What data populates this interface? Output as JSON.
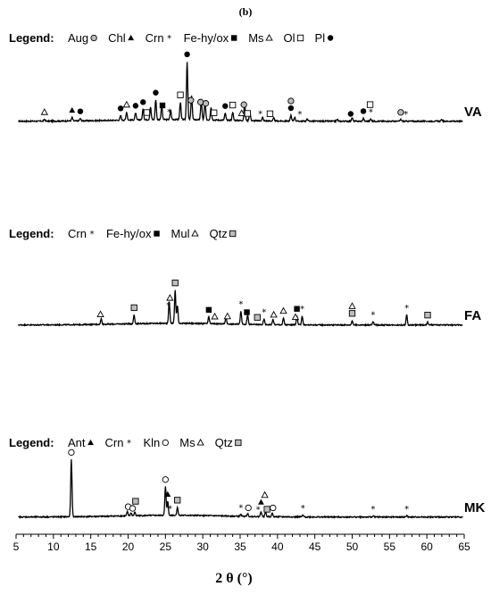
{
  "chart_data": {
    "type": "line",
    "panel_label": "(b)",
    "xlabel": "2 θ (°)",
    "xlim": [
      5,
      65
    ],
    "x_ticks": [
      "5",
      "10",
      "15",
      "20",
      "25",
      "30",
      "35",
      "40",
      "45",
      "50",
      "55",
      "60",
      "65"
    ],
    "legend_key": "Legend:",
    "series": [
      {
        "name": "VA",
        "legend": [
          {
            "label": "Aug",
            "marker": "circle-gray"
          },
          {
            "label": "Chl",
            "marker": "triangle-filled"
          },
          {
            "label": "Crn",
            "marker": "star"
          },
          {
            "label": "Fe-hy/ox",
            "marker": "square-filled"
          },
          {
            "label": "Ms",
            "marker": "triangle-open"
          },
          {
            "label": "Ol",
            "marker": "square-open"
          },
          {
            "label": "Pl",
            "marker": "circle-filled"
          }
        ],
        "peaks": [
          {
            "x": 8.8,
            "h": 0.03
          },
          {
            "x": 12.5,
            "h": 0.06
          },
          {
            "x": 13.6,
            "h": 0.04
          },
          {
            "x": 19.0,
            "h": 0.08
          },
          {
            "x": 19.8,
            "h": 0.14
          },
          {
            "x": 21.0,
            "h": 0.12
          },
          {
            "x": 22.0,
            "h": 0.18
          },
          {
            "x": 23.0,
            "h": 0.22
          },
          {
            "x": 23.7,
            "h": 0.34
          },
          {
            "x": 24.5,
            "h": 0.24
          },
          {
            "x": 25.7,
            "h": 0.16
          },
          {
            "x": 27.0,
            "h": 0.3
          },
          {
            "x": 27.9,
            "h": 1.0
          },
          {
            "x": 28.5,
            "h": 0.42
          },
          {
            "x": 29.8,
            "h": 0.36
          },
          {
            "x": 30.3,
            "h": 0.32
          },
          {
            "x": 31.1,
            "h": 0.22
          },
          {
            "x": 33.0,
            "h": 0.12
          },
          {
            "x": 34.0,
            "h": 0.14
          },
          {
            "x": 35.6,
            "h": 0.3
          },
          {
            "x": 36.3,
            "h": 0.16
          },
          {
            "x": 38.0,
            "h": 0.06
          },
          {
            "x": 39.5,
            "h": 0.05
          },
          {
            "x": 41.8,
            "h": 0.1
          },
          {
            "x": 42.3,
            "h": 0.07
          },
          {
            "x": 44.0,
            "h": 0.04
          },
          {
            "x": 48.0,
            "h": 0.03
          },
          {
            "x": 50.0,
            "h": 0.06
          },
          {
            "x": 51.5,
            "h": 0.05
          },
          {
            "x": 52.5,
            "h": 0.04
          },
          {
            "x": 56.5,
            "h": 0.03
          },
          {
            "x": 62.0,
            "h": 0.03
          }
        ],
        "markers": [
          {
            "x": 8.8,
            "m": "triangle-open"
          },
          {
            "x": 12.5,
            "m": "triangle-filled"
          },
          {
            "x": 13.6,
            "m": "circle-filled"
          },
          {
            "x": 19.0,
            "m": "circle-filled"
          },
          {
            "x": 19.8,
            "m": "triangle-open"
          },
          {
            "x": 21.0,
            "m": "circle-filled"
          },
          {
            "x": 22.0,
            "m": "circle-filled"
          },
          {
            "x": 22.5,
            "m": "square-open"
          },
          {
            "x": 23.7,
            "m": "circle-filled"
          },
          {
            "x": 24.6,
            "m": "square-filled"
          },
          {
            "x": 25.5,
            "m": "star"
          },
          {
            "x": 27.0,
            "m": "square-open"
          },
          {
            "x": 27.9,
            "m": "circle-filled"
          },
          {
            "x": 28.4,
            "m": "circle-gray"
          },
          {
            "x": 29.7,
            "m": "circle-gray"
          },
          {
            "x": 30.4,
            "m": "circle-gray"
          },
          {
            "x": 31.5,
            "m": "square-open"
          },
          {
            "x": 33.0,
            "m": "circle-filled"
          },
          {
            "x": 34.0,
            "m": "square-open"
          },
          {
            "x": 35.5,
            "m": "circle-gray"
          },
          {
            "x": 35.2,
            "m": "triangle-open"
          },
          {
            "x": 36.0,
            "m": "square-open"
          },
          {
            "x": 37.7,
            "m": "star"
          },
          {
            "x": 39.0,
            "m": "square-open"
          },
          {
            "x": 41.8,
            "m": "circle-filled"
          },
          {
            "x": 41.8,
            "m": "circle-gray"
          },
          {
            "x": 43.0,
            "m": "star"
          },
          {
            "x": 49.8,
            "m": "circle-filled"
          },
          {
            "x": 51.5,
            "m": "circle-filled"
          },
          {
            "x": 52.5,
            "m": "star"
          },
          {
            "x": 52.4,
            "m": "square-open"
          },
          {
            "x": 56.5,
            "m": "circle-gray"
          },
          {
            "x": 57.2,
            "m": "star"
          }
        ]
      },
      {
        "name": "FA",
        "legend": [
          {
            "label": "Crn",
            "marker": "star"
          },
          {
            "label": "Fe-hy/ox",
            "marker": "square-filled"
          },
          {
            "label": "Mul",
            "marker": "triangle-open"
          },
          {
            "label": "Qtz",
            "marker": "square-gray"
          }
        ],
        "peaks": [
          {
            "x": 16.4,
            "h": 0.1
          },
          {
            "x": 20.8,
            "h": 0.16
          },
          {
            "x": 25.5,
            "h": 0.4
          },
          {
            "x": 26.3,
            "h": 0.6
          },
          {
            "x": 26.6,
            "h": 0.32
          },
          {
            "x": 30.8,
            "h": 0.12
          },
          {
            "x": 33.1,
            "h": 0.13
          },
          {
            "x": 35.1,
            "h": 0.24
          },
          {
            "x": 36.0,
            "h": 0.18
          },
          {
            "x": 38.2,
            "h": 0.1
          },
          {
            "x": 39.4,
            "h": 0.1
          },
          {
            "x": 40.8,
            "h": 0.12
          },
          {
            "x": 42.6,
            "h": 0.16
          },
          {
            "x": 43.3,
            "h": 0.16
          },
          {
            "x": 50.0,
            "h": 0.08
          },
          {
            "x": 52.8,
            "h": 0.06
          },
          {
            "x": 57.3,
            "h": 0.18
          },
          {
            "x": 60.1,
            "h": 0.05
          }
        ],
        "markers": [
          {
            "x": 16.3,
            "m": "triangle-open"
          },
          {
            "x": 20.8,
            "m": "square-gray"
          },
          {
            "x": 25.4,
            "m": "star"
          },
          {
            "x": 25.6,
            "m": "triangle-open"
          },
          {
            "x": 26.3,
            "m": "square-gray"
          },
          {
            "x": 30.8,
            "m": "square-filled"
          },
          {
            "x": 31.6,
            "m": "triangle-open"
          },
          {
            "x": 33.3,
            "m": "triangle-open"
          },
          {
            "x": 35.1,
            "m": "star"
          },
          {
            "x": 35.9,
            "m": "square-filled"
          },
          {
            "x": 37.3,
            "m": "square-gray"
          },
          {
            "x": 38.2,
            "m": "star"
          },
          {
            "x": 39.5,
            "m": "triangle-open"
          },
          {
            "x": 40.8,
            "m": "triangle-open"
          },
          {
            "x": 42.4,
            "m": "triangle-open"
          },
          {
            "x": 42.6,
            "m": "square-filled"
          },
          {
            "x": 43.3,
            "m": "star"
          },
          {
            "x": 50.0,
            "m": "square-gray"
          },
          {
            "x": 50.0,
            "m": "triangle-open"
          },
          {
            "x": 52.8,
            "m": "star"
          },
          {
            "x": 57.3,
            "m": "star"
          },
          {
            "x": 60.1,
            "m": "square-gray"
          }
        ]
      },
      {
        "name": "MK",
        "legend": [
          {
            "label": "Ant",
            "marker": "triangle-filled"
          },
          {
            "label": "Crn",
            "marker": "star"
          },
          {
            "label": "Kln",
            "marker": "circle-open"
          },
          {
            "label": "Ms",
            "marker": "triangle-open"
          },
          {
            "label": "Qtz",
            "marker": "square-gray"
          }
        ],
        "peaks": [
          {
            "x": 12.4,
            "h": 1.0
          },
          {
            "x": 19.9,
            "h": 0.07
          },
          {
            "x": 20.4,
            "h": 0.05
          },
          {
            "x": 20.9,
            "h": 0.06
          },
          {
            "x": 25.0,
            "h": 0.5
          },
          {
            "x": 25.3,
            "h": 0.24
          },
          {
            "x": 26.6,
            "h": 0.14
          },
          {
            "x": 35.1,
            "h": 0.03
          },
          {
            "x": 36.0,
            "h": 0.05
          },
          {
            "x": 37.8,
            "h": 0.09
          },
          {
            "x": 38.4,
            "h": 0.08
          },
          {
            "x": 39.3,
            "h": 0.06
          },
          {
            "x": 43.4,
            "h": 0.03
          },
          {
            "x": 52.8,
            "h": 0.02
          },
          {
            "x": 57.3,
            "h": 0.02
          }
        ],
        "markers": [
          {
            "x": 12.4,
            "m": "circle-open"
          },
          {
            "x": 20.0,
            "m": "circle-open"
          },
          {
            "x": 20.6,
            "m": "circle-open"
          },
          {
            "x": 21.0,
            "m": "square-gray"
          },
          {
            "x": 25.0,
            "m": "circle-open"
          },
          {
            "x": 25.3,
            "m": "triangle-filled"
          },
          {
            "x": 25.6,
            "m": "star"
          },
          {
            "x": 26.6,
            "m": "square-gray"
          },
          {
            "x": 35.1,
            "m": "star"
          },
          {
            "x": 36.1,
            "m": "circle-open"
          },
          {
            "x": 37.4,
            "m": "star"
          },
          {
            "x": 37.8,
            "m": "triangle-filled"
          },
          {
            "x": 38.3,
            "m": "triangle-open"
          },
          {
            "x": 38.6,
            "m": "square-gray"
          },
          {
            "x": 39.4,
            "m": "circle-open"
          },
          {
            "x": 43.4,
            "m": "star"
          },
          {
            "x": 52.8,
            "m": "star"
          },
          {
            "x": 57.3,
            "m": "star"
          }
        ]
      }
    ],
    "colors": {
      "line": "#000000",
      "gray_fill": "#bdbdbd"
    }
  }
}
